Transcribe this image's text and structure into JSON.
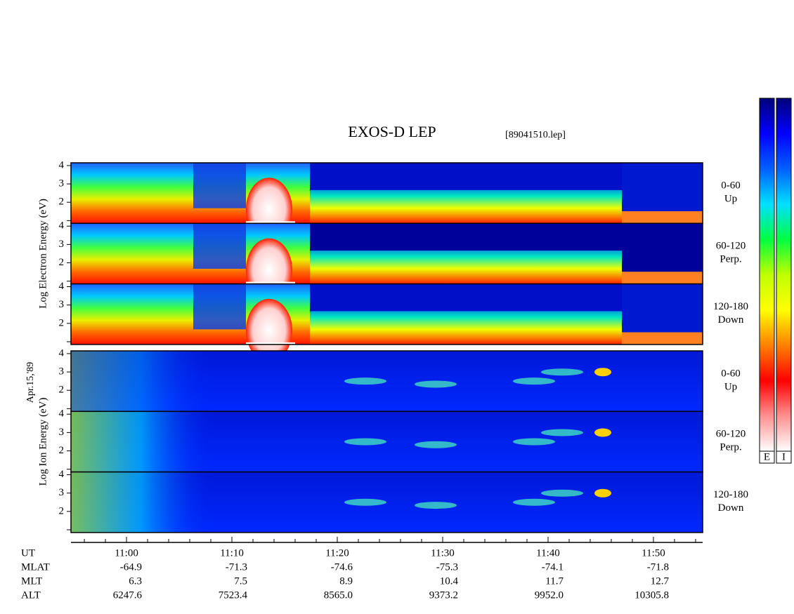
{
  "chart_data": {
    "type": "spectrogram",
    "title": "EXOS-D LEP",
    "file_label": "[89041510.lep]",
    "date_label": "Apr.15,'89",
    "groups": [
      {
        "ylabel": "Log Electron Energy (eV)",
        "panels": [
          {
            "pitch": "0-60",
            "direction": "Up"
          },
          {
            "pitch": "60-120",
            "direction": "Perp."
          },
          {
            "pitch": "120-180",
            "direction": "Down"
          }
        ]
      },
      {
        "ylabel": "Log Ion Energy (eV)",
        "panels": [
          {
            "pitch": "0-60",
            "direction": "Up"
          },
          {
            "pitch": "60-120",
            "direction": "Perp."
          },
          {
            "pitch": "120-180",
            "direction": "Down"
          }
        ]
      }
    ],
    "ylim": [
      0.85,
      4.15
    ],
    "yticks": [
      2,
      3,
      4
    ],
    "minor_yticks": [
      1
    ],
    "xlim": [
      654.73,
      714.67
    ],
    "xticks": [
      {
        "value": 660,
        "label": "11:00"
      },
      {
        "value": 670,
        "label": "11:10"
      },
      {
        "value": 680,
        "label": "11:20"
      },
      {
        "value": 690,
        "label": "11:30"
      },
      {
        "value": 700,
        "label": "11:40"
      },
      {
        "value": 710,
        "label": "11:50"
      }
    ],
    "minor_xticks": [
      656,
      658,
      662,
      664,
      666,
      668,
      672,
      674,
      676,
      678,
      682,
      684,
      686,
      688,
      692,
      694,
      696,
      698,
      702,
      704,
      706,
      708,
      712,
      714
    ],
    "orbit_rows": [
      {
        "name": "UT"
      },
      {
        "name": "MLAT",
        "values": [
          -64.9,
          -71.3,
          -74.6,
          -75.3,
          -74.1,
          -71.8
        ]
      },
      {
        "name": "MLT",
        "values": [
          6.3,
          7.5,
          8.9,
          10.4,
          11.7,
          12.7
        ]
      },
      {
        "name": "ALT",
        "values": [
          6247.6,
          7523.4,
          8565.0,
          9373.2,
          9952.0,
          10305.8
        ],
        "value_labels": [
          "6247.6",
          "7523.4",
          "8565.0",
          "9373.2",
          "9952.0",
          "10305.8"
        ]
      }
    ],
    "colorbar_labels": [
      "E",
      "I"
    ],
    "colorbar_colors": [
      "#00007a",
      "#0000ff",
      "#0060ff",
      "#00e0ff",
      "#00ff40",
      "#c0ff00",
      "#ffff00",
      "#ff8000",
      "#ff0000",
      "#ff9090",
      "#ffffff"
    ]
  }
}
